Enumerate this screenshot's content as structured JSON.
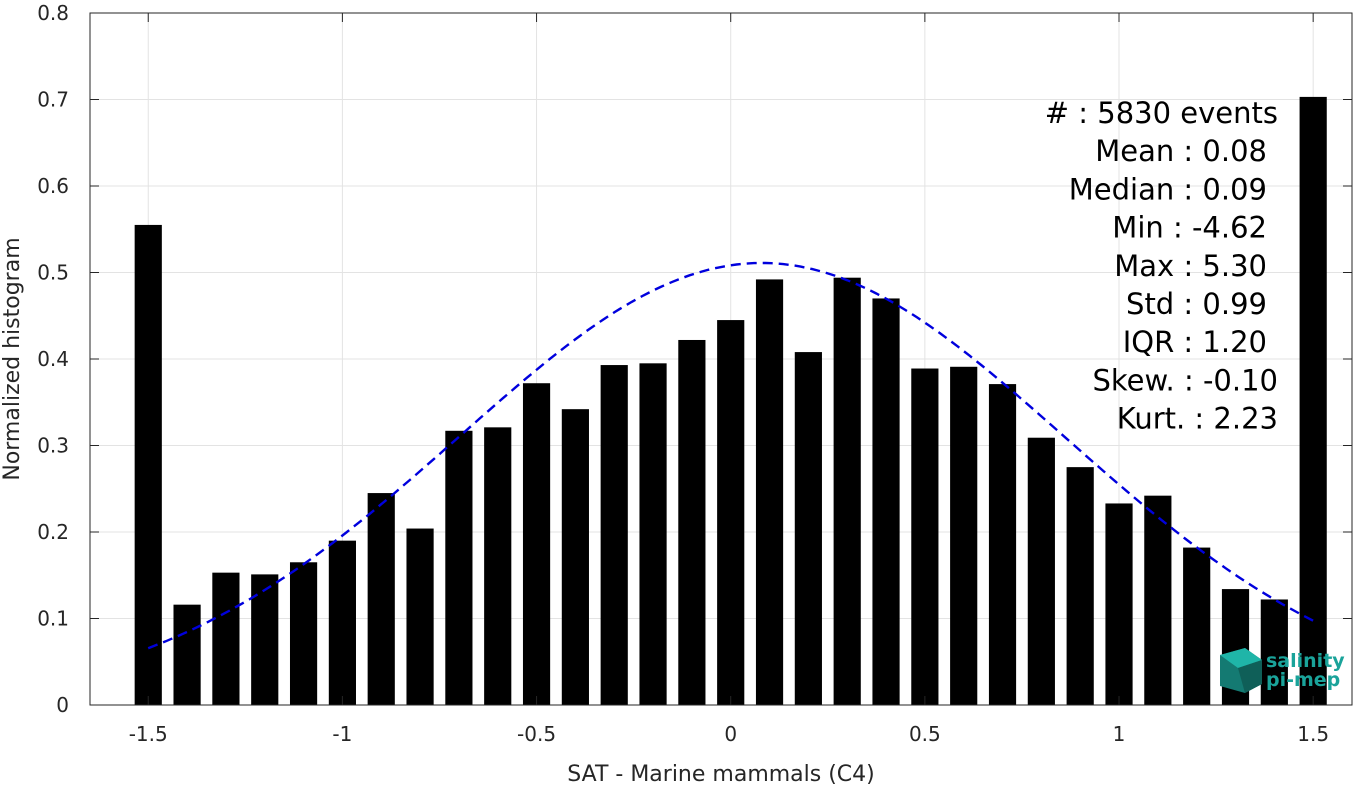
{
  "chart_data": {
    "type": "bar",
    "xlabel": "SAT - Marine mammals (C4)",
    "ylabel": "Normalized histogram",
    "xlim": [
      -1.65,
      1.6
    ],
    "ylim": [
      0,
      0.8
    ],
    "xticks": [
      -1.5,
      -1,
      -0.5,
      0,
      0.5,
      1,
      1.5
    ],
    "xtick_labels": [
      "-1.5",
      "-1",
      "-0.5",
      "0",
      "0.5",
      "1",
      "1.5"
    ],
    "yticks": [
      0,
      0.1,
      0.2,
      0.3,
      0.4,
      0.5,
      0.6,
      0.7,
      0.8
    ],
    "ytick_labels": [
      "0",
      "0.1",
      "0.2",
      "0.3",
      "0.4",
      "0.5",
      "0.6",
      "0.7",
      "0.8"
    ],
    "grid": true,
    "bar_color": "#000000",
    "bars": {
      "x": [
        -1.5,
        -1.4,
        -1.3,
        -1.2,
        -1.1,
        -1.0,
        -0.9,
        -0.8,
        -0.7,
        -0.6,
        -0.5,
        -0.4,
        -0.3,
        -0.2,
        -0.1,
        0.0,
        0.1,
        0.2,
        0.3,
        0.4,
        0.5,
        0.6,
        0.7,
        0.8,
        0.9,
        1.0,
        1.1,
        1.2,
        1.3,
        1.4,
        1.5
      ],
      "values": [
        0.555,
        0.116,
        0.153,
        0.151,
        0.165,
        0.19,
        0.245,
        0.204,
        0.317,
        0.321,
        0.372,
        0.342,
        0.393,
        0.395,
        0.422,
        0.445,
        0.492,
        0.408,
        0.494,
        0.47,
        0.389,
        0.391,
        0.371,
        0.309,
        0.275,
        0.233,
        0.242,
        0.182,
        0.134,
        0.122,
        0.703
      ],
      "width": 0.07
    },
    "fit_curve": {
      "color": "#0000dd",
      "style": "dashed",
      "mean": 0.08,
      "std": 0.78,
      "peak": 0.511,
      "x_range": [
        -1.5,
        1.5
      ]
    },
    "stats": [
      {
        "label": "#  : 5830 events"
      },
      {
        "label": "Mean : 0.08"
      },
      {
        "label": "Median : 0.09"
      },
      {
        "label": "Min : -4.62"
      },
      {
        "label": "Max : 5.30"
      },
      {
        "label": "Std : 0.99"
      },
      {
        "label": "IQR : 1.20"
      },
      {
        "label": "Skew. : -0.10"
      },
      {
        "label": "Kurt. : 2.23"
      }
    ]
  },
  "logo": {
    "line1": "salinity",
    "line2": "pi-mep",
    "color": "#1aa39a"
  }
}
